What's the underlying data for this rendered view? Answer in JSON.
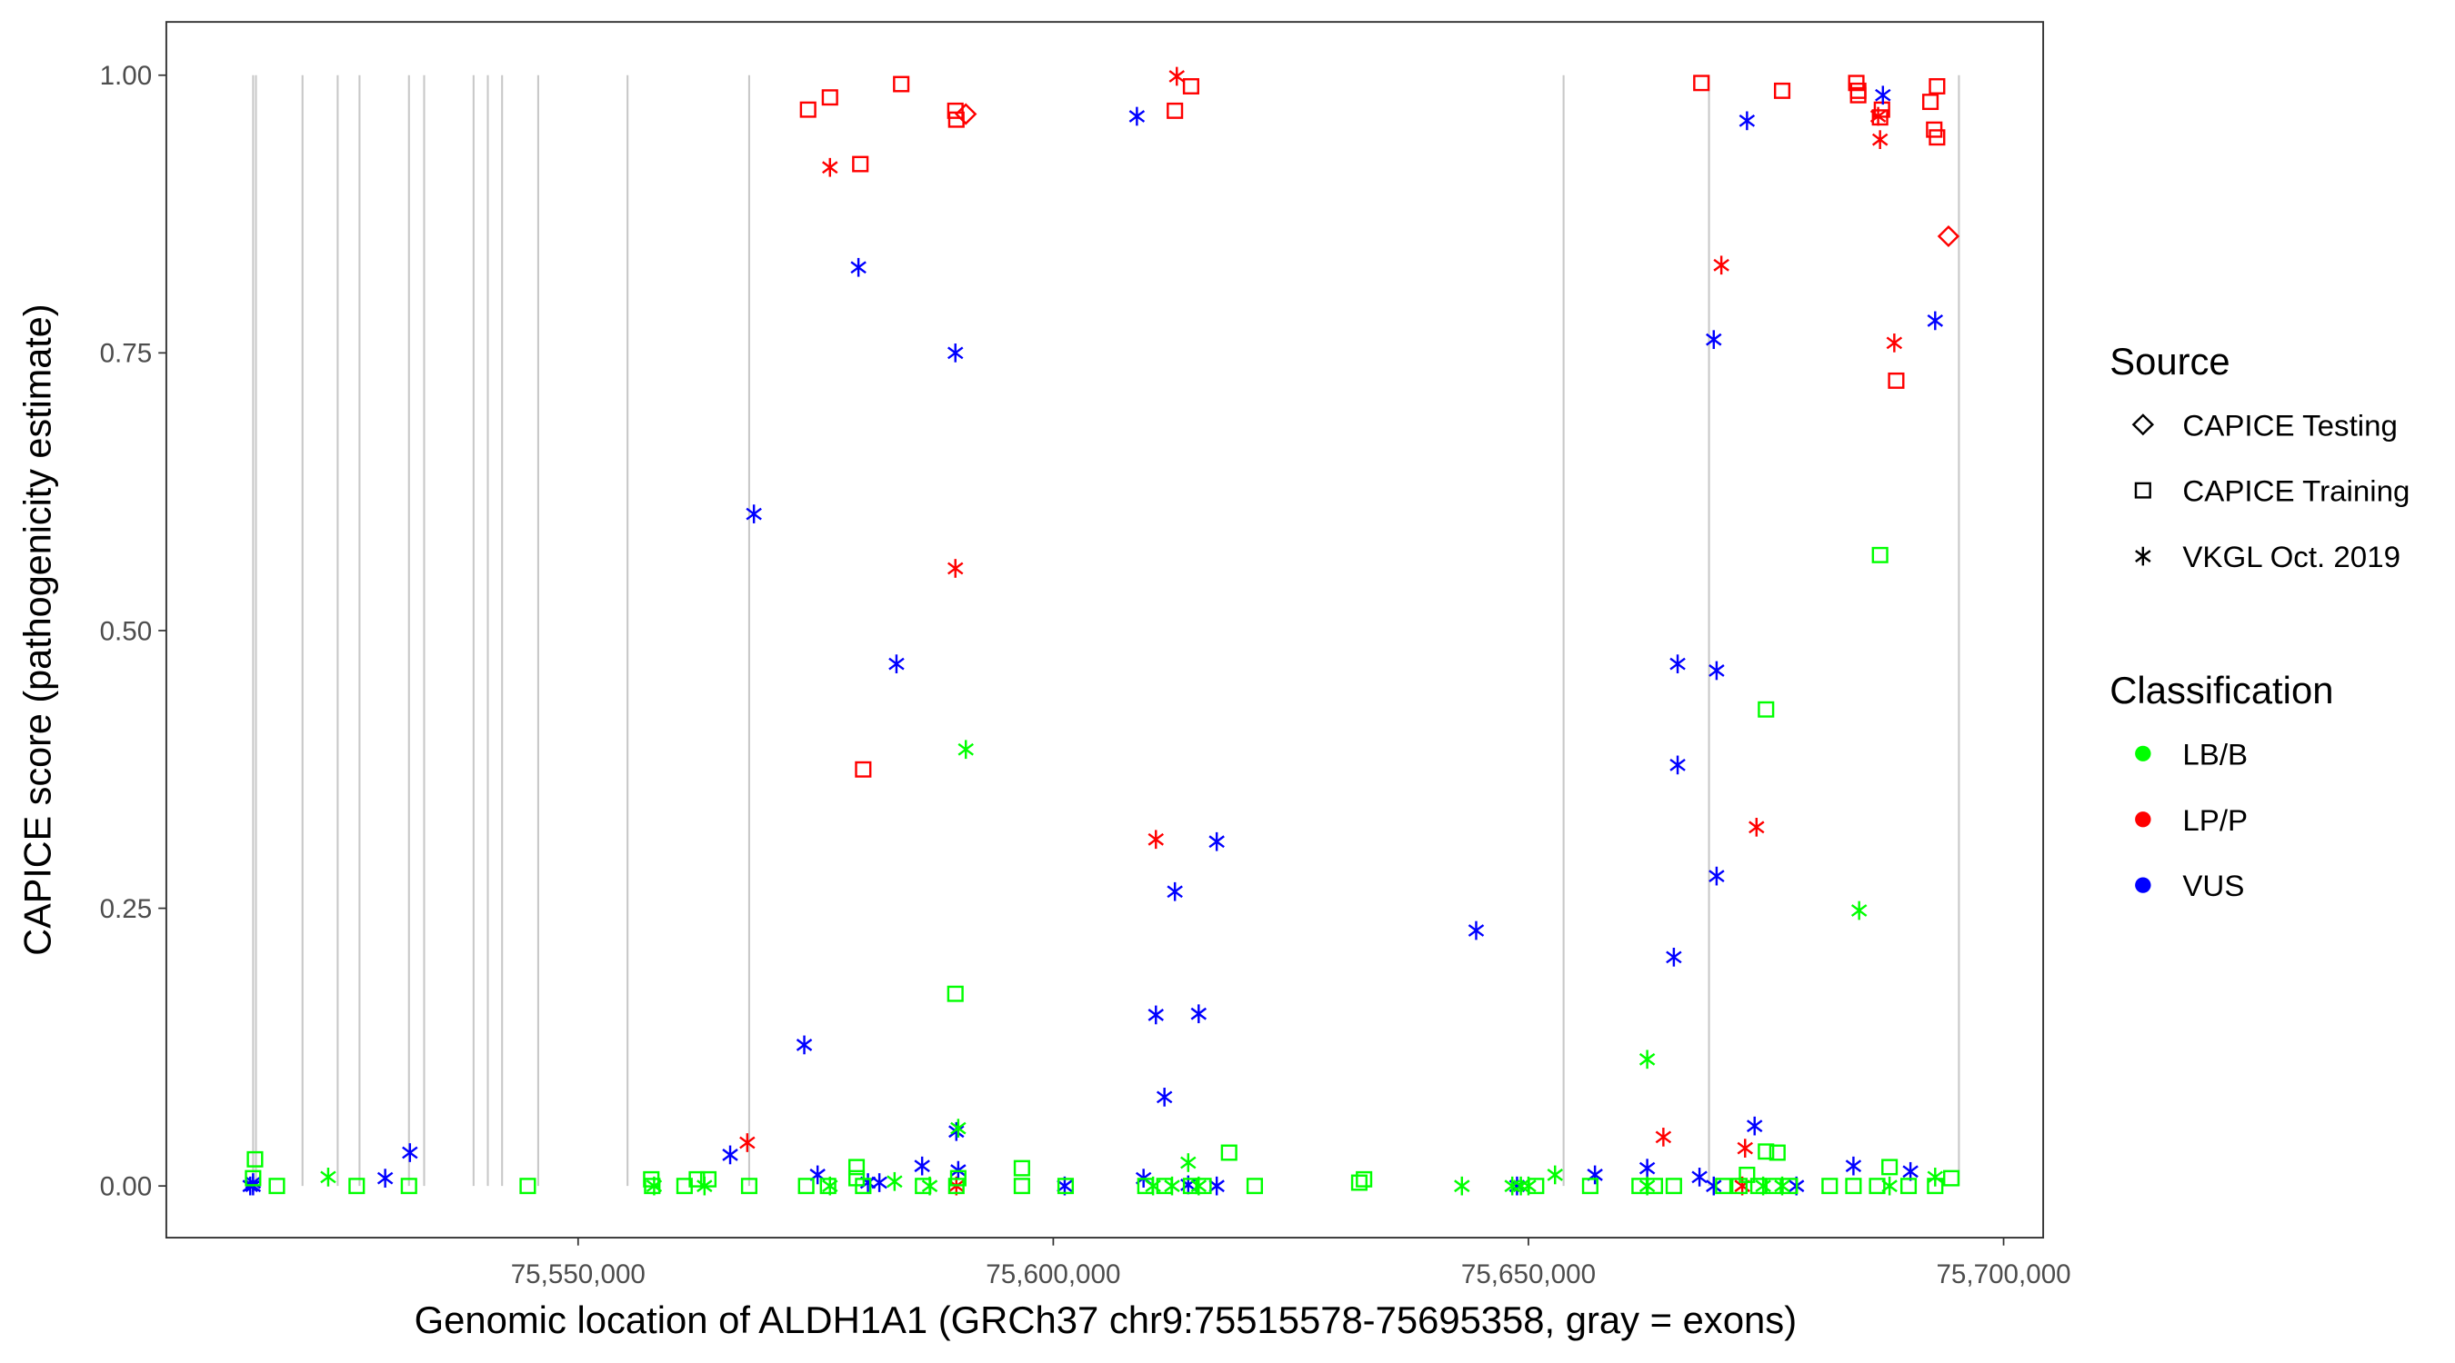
{
  "chart_data": {
    "type": "scatter",
    "xlabel": "Genomic location of ALDH1A1 (GRCh37 chr9:75515578-75695358, gray = exons)",
    "ylabel": "CAPICE score (pathogenicity estimate)",
    "xlim": [
      75506000,
      75703000
    ],
    "ylim": [
      -0.05,
      1.05
    ],
    "x_ticks": [
      75550000,
      75600000,
      75650000,
      75700000
    ],
    "x_tick_labels": [
      "75,550,000",
      "75,600,000",
      "75,650,000",
      "75,700,000"
    ],
    "y_ticks": [
      0,
      0.25,
      0.5,
      0.75,
      1.0
    ],
    "y_tick_labels": [
      "0.00",
      "0.25",
      "0.50",
      "0.75",
      "1.00"
    ],
    "grid": false,
    "exon_color": "#c8c8c8",
    "exons": [
      75515800,
      75516100,
      75521000,
      75524700,
      75527000,
      75532200,
      75533800,
      75539000,
      75540500,
      75542000,
      75545800,
      75555200,
      75568000,
      75653700,
      75669000,
      75695300
    ],
    "legend_placement": "right",
    "legend": {
      "source": {
        "title": "Source",
        "items": [
          {
            "label": "CAPICE Testing",
            "shape": "diamond"
          },
          {
            "label": "CAPICE Training",
            "shape": "square"
          },
          {
            "label": "VKGL Oct. 2019",
            "shape": "asterisk"
          }
        ]
      },
      "classification": {
        "title": "Classification",
        "items": [
          {
            "label": "LB/B",
            "color": "#00ff00"
          },
          {
            "label": "LP/P",
            "color": "#ff0000"
          },
          {
            "label": "VUS",
            "color": "#0000ff"
          }
        ]
      }
    },
    "point_fields": [
      "position",
      "capice_score",
      "source_index",
      "classification_index"
    ],
    "points": [
      [
        75574200,
        0.969,
        1,
        1
      ],
      [
        75576500,
        0.98,
        1,
        1
      ],
      [
        75584000,
        0.992,
        1,
        1
      ],
      [
        75589700,
        0.968,
        1,
        1
      ],
      [
        75589800,
        0.96,
        1,
        1
      ],
      [
        75590800,
        0.965,
        0,
        1
      ],
      [
        75576500,
        0.917,
        2,
        1
      ],
      [
        75579700,
        0.92,
        1,
        1
      ],
      [
        75589700,
        0.556,
        2,
        1
      ],
      [
        75580000,
        0.375,
        1,
        1
      ],
      [
        75567800,
        0.039,
        2,
        1
      ],
      [
        75613000,
        0.999,
        2,
        1
      ],
      [
        75612800,
        0.968,
        1,
        1
      ],
      [
        75614500,
        0.99,
        1,
        1
      ],
      [
        75610800,
        0.312,
        2,
        1
      ],
      [
        75668200,
        0.993,
        1,
        1
      ],
      [
        75676700,
        0.986,
        1,
        1
      ],
      [
        75684500,
        0.993,
        1,
        1
      ],
      [
        75684700,
        0.986,
        1,
        1
      ],
      [
        75684700,
        0.982,
        1,
        1
      ],
      [
        75687200,
        0.969,
        1,
        1
      ],
      [
        75687000,
        0.962,
        1,
        1
      ],
      [
        75686800,
        0.963,
        2,
        1
      ],
      [
        75687000,
        0.942,
        2,
        1
      ],
      [
        75692300,
        0.976,
        1,
        1
      ],
      [
        75693000,
        0.99,
        1,
        1
      ],
      [
        75692700,
        0.951,
        1,
        1
      ],
      [
        75693000,
        0.944,
        1,
        1
      ],
      [
        75694200,
        0.855,
        0,
        1
      ],
      [
        75670300,
        0.829,
        2,
        1
      ],
      [
        75688500,
        0.759,
        2,
        1
      ],
      [
        75688700,
        0.725,
        1,
        1
      ],
      [
        75674000,
        0.323,
        2,
        1
      ],
      [
        75664200,
        0.044,
        2,
        1
      ],
      [
        75672800,
        0.034,
        2,
        1
      ],
      [
        75589800,
        0.0,
        2,
        1
      ],
      [
        75672500,
        0.0,
        2,
        1
      ],
      [
        75608800,
        0.963,
        2,
        2
      ],
      [
        75579500,
        0.827,
        2,
        2
      ],
      [
        75589700,
        0.75,
        2,
        2
      ],
      [
        75568500,
        0.605,
        2,
        2
      ],
      [
        75583500,
        0.47,
        2,
        2
      ],
      [
        75573800,
        0.127,
        2,
        2
      ],
      [
        75589800,
        0.049,
        2,
        2
      ],
      [
        75566000,
        0.028,
        2,
        2
      ],
      [
        75532300,
        0.03,
        2,
        2
      ],
      [
        75529700,
        0.007,
        2,
        2
      ],
      [
        75515800,
        0.003,
        2,
        2
      ],
      [
        75515800,
        0.0,
        2,
        2
      ],
      [
        75515500,
        0.0,
        2,
        2
      ],
      [
        75575200,
        0.01,
        2,
        2
      ],
      [
        75586200,
        0.018,
        2,
        2
      ],
      [
        75590000,
        0.014,
        2,
        2
      ],
      [
        75580500,
        0.003,
        2,
        2
      ],
      [
        75581700,
        0.003,
        2,
        2
      ],
      [
        75601200,
        0.0,
        2,
        2
      ],
      [
        75609500,
        0.007,
        2,
        2
      ],
      [
        75614200,
        0.001,
        2,
        2
      ],
      [
        75617200,
        0.0,
        2,
        2
      ],
      [
        75617200,
        0.31,
        2,
        2
      ],
      [
        75612800,
        0.265,
        2,
        2
      ],
      [
        75610800,
        0.154,
        2,
        2
      ],
      [
        75615300,
        0.155,
        2,
        2
      ],
      [
        75611700,
        0.08,
        2,
        2
      ],
      [
        75644500,
        0.23,
        2,
        2
      ],
      [
        75648800,
        0.0,
        2,
        2
      ],
      [
        75657000,
        0.01,
        2,
        2
      ],
      [
        75662500,
        0.016,
        2,
        2
      ],
      [
        75665700,
        0.47,
        2,
        2
      ],
      [
        75669800,
        0.464,
        2,
        2
      ],
      [
        75665700,
        0.379,
        2,
        2
      ],
      [
        75669800,
        0.279,
        2,
        2
      ],
      [
        75665300,
        0.206,
        2,
        2
      ],
      [
        75673000,
        0.959,
        2,
        2
      ],
      [
        75669500,
        0.762,
        2,
        2
      ],
      [
        75687300,
        0.982,
        2,
        2
      ],
      [
        75692800,
        0.779,
        2,
        2
      ],
      [
        75673800,
        0.054,
        2,
        2
      ],
      [
        75668000,
        0.008,
        2,
        2
      ],
      [
        75669500,
        0.0,
        2,
        2
      ],
      [
        75678200,
        0.0,
        2,
        2
      ],
      [
        75684200,
        0.018,
        2,
        2
      ],
      [
        75690200,
        0.013,
        2,
        2
      ],
      [
        75516000,
        0.024,
        1,
        0
      ],
      [
        75515800,
        0.007,
        1,
        0
      ],
      [
        75518300,
        0.0,
        1,
        0
      ],
      [
        75523700,
        0.008,
        2,
        0
      ],
      [
        75526700,
        0.0,
        1,
        0
      ],
      [
        75532200,
        0.0,
        1,
        0
      ],
      [
        75544700,
        0.0,
        1,
        0
      ],
      [
        75557700,
        0.006,
        1,
        0
      ],
      [
        75557800,
        0.0,
        1,
        0
      ],
      [
        75558000,
        0.0,
        2,
        0
      ],
      [
        75561200,
        0.0,
        1,
        0
      ],
      [
        75562500,
        0.006,
        1,
        0
      ],
      [
        75563700,
        0.006,
        1,
        0
      ],
      [
        75563300,
        0.0,
        2,
        0
      ],
      [
        75568000,
        0.0,
        1,
        0
      ],
      [
        75574000,
        0.0,
        1,
        0
      ],
      [
        75576300,
        0.0,
        1,
        0
      ],
      [
        75576500,
        0.0,
        2,
        0
      ],
      [
        75579300,
        0.017,
        1,
        0
      ],
      [
        75579300,
        0.007,
        1,
        0
      ],
      [
        75580000,
        0.0,
        1,
        0
      ],
      [
        75583300,
        0.004,
        2,
        0
      ],
      [
        75586300,
        0.0,
        1,
        0
      ],
      [
        75587000,
        0.0,
        2,
        0
      ],
      [
        75589700,
        0.173,
        1,
        0
      ],
      [
        75590000,
        0.052,
        2,
        0
      ],
      [
        75590000,
        0.007,
        1,
        0
      ],
      [
        75589800,
        0.0,
        1,
        0
      ],
      [
        75590800,
        0.393,
        2,
        0
      ],
      [
        75596700,
        0.016,
        1,
        0
      ],
      [
        75596700,
        0.0,
        1,
        0
      ],
      [
        75601300,
        0.0,
        1,
        0
      ],
      [
        75609700,
        0.0,
        1,
        0
      ],
      [
        75610500,
        0.0,
        2,
        0
      ],
      [
        75611700,
        0.0,
        1,
        0
      ],
      [
        75612500,
        0.0,
        2,
        0
      ],
      [
        75614500,
        0.0,
        1,
        0
      ],
      [
        75615300,
        0.0,
        2,
        0
      ],
      [
        75615800,
        0.0,
        1,
        0
      ],
      [
        75614200,
        0.021,
        2,
        0
      ],
      [
        75618500,
        0.03,
        1,
        0
      ],
      [
        75621200,
        0.0,
        1,
        0
      ],
      [
        75632200,
        0.003,
        1,
        0
      ],
      [
        75632700,
        0.006,
        1,
        0
      ],
      [
        75643000,
        0.0,
        2,
        0
      ],
      [
        75648300,
        0.0,
        2,
        0
      ],
      [
        75649200,
        0.0,
        2,
        0
      ],
      [
        75650000,
        0.0,
        2,
        0
      ],
      [
        75650800,
        0.0,
        1,
        0
      ],
      [
        75652800,
        0.01,
        2,
        0
      ],
      [
        75656500,
        0.0,
        1,
        0
      ],
      [
        75662500,
        0.114,
        2,
        0
      ],
      [
        75661700,
        0.0,
        1,
        0
      ],
      [
        75663300,
        0.0,
        1,
        0
      ],
      [
        75665300,
        0.0,
        1,
        0
      ],
      [
        75662500,
        0.0,
        2,
        0
      ],
      [
        75670500,
        0.0,
        1,
        0
      ],
      [
        75672200,
        0.0,
        1,
        0
      ],
      [
        75673000,
        0.01,
        1,
        0
      ],
      [
        75675000,
        0.031,
        1,
        0
      ],
      [
        75676200,
        0.03,
        1,
        0
      ],
      [
        75674200,
        0.0,
        1,
        0
      ],
      [
        75675800,
        0.0,
        1,
        0
      ],
      [
        75677500,
        0.0,
        1,
        0
      ],
      [
        75674700,
        0.0,
        2,
        0
      ],
      [
        75676700,
        0.0,
        2,
        0
      ],
      [
        75675000,
        0.429,
        1,
        0
      ],
      [
        75687000,
        0.568,
        1,
        0
      ],
      [
        75684800,
        0.248,
        2,
        0
      ],
      [
        75681700,
        0.0,
        1,
        0
      ],
      [
        75684200,
        0.0,
        1,
        0
      ],
      [
        75686700,
        0.0,
        1,
        0
      ],
      [
        75688000,
        0.017,
        1,
        0
      ],
      [
        75690000,
        0.0,
        1,
        0
      ],
      [
        75692800,
        0.0,
        1,
        0
      ],
      [
        75694500,
        0.007,
        1,
        0
      ],
      [
        75688000,
        0.0,
        2,
        0
      ],
      [
        75692800,
        0.008,
        2,
        0
      ]
    ]
  }
}
